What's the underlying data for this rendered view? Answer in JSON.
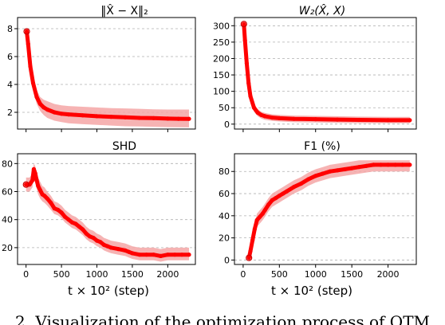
{
  "figure": {
    "xlabel": "t × 10² (step)",
    "caption_fragment": "2. Visualization of the optimization process of OTM"
  },
  "chart_data": [
    {
      "type": "line",
      "title": "‖X̂ − X‖₂",
      "xlabel": "",
      "ylabel": "",
      "xlim": [
        -120,
        2390
      ],
      "ylim": [
        0.8,
        8.8
      ],
      "xticks": [
        0,
        500,
        1000,
        1500,
        2000
      ],
      "xtick_labels_shown": false,
      "yticks": [
        2,
        4,
        6,
        8
      ],
      "grid": "horizontal dashed",
      "series": [
        {
          "x": [
            10,
            30,
            60,
            100,
            150,
            200,
            250,
            300,
            400,
            500,
            600,
            800,
            1000,
            1200,
            1400,
            1600,
            1800,
            2000,
            2150,
            2300
          ],
          "y": [
            7.8,
            6.9,
            5.3,
            4.1,
            3.1,
            2.6,
            2.35,
            2.2,
            2.0,
            1.9,
            1.85,
            1.78,
            1.72,
            1.68,
            1.64,
            1.6,
            1.58,
            1.55,
            1.54,
            1.53
          ],
          "lo": [
            7.8,
            6.6,
            4.9,
            3.6,
            2.6,
            2.1,
            1.8,
            1.6,
            1.4,
            1.3,
            1.22,
            1.15,
            1.1,
            1.05,
            1.0,
            0.98,
            0.96,
            0.94,
            0.93,
            0.92
          ],
          "hi": [
            7.8,
            7.2,
            5.7,
            4.6,
            3.6,
            3.1,
            2.9,
            2.8,
            2.6,
            2.5,
            2.45,
            2.4,
            2.35,
            2.3,
            2.28,
            2.25,
            2.22,
            2.2,
            2.2,
            2.2
          ]
        }
      ]
    },
    {
      "type": "line",
      "title": "W₂(X̂, X)",
      "xlabel": "",
      "ylabel": "",
      "xlim": [
        -120,
        2390
      ],
      "ylim": [
        -15,
        325
      ],
      "xticks": [
        0,
        500,
        1000,
        1500,
        2000
      ],
      "xtick_labels_shown": false,
      "yticks": [
        0,
        50,
        100,
        150,
        200,
        250,
        300
      ],
      "grid": "horizontal dashed",
      "series": [
        {
          "x": [
            10,
            25,
            50,
            75,
            100,
            150,
            200,
            250,
            300,
            400,
            500,
            700,
            1000,
            1300,
            1600,
            2000,
            2300
          ],
          "y": [
            305,
            255,
            185,
            125,
            85,
            50,
            35,
            28,
            24,
            20,
            18,
            16,
            15,
            14,
            13,
            12,
            12
          ],
          "lo": [
            305,
            245,
            170,
            110,
            72,
            38,
            24,
            17,
            13,
            10,
            8,
            6,
            5,
            4,
            3,
            3,
            3
          ],
          "hi": [
            305,
            265,
            200,
            140,
            98,
            62,
            46,
            38,
            34,
            30,
            28,
            26,
            25,
            24,
            23,
            22,
            22
          ]
        }
      ]
    },
    {
      "type": "line",
      "title": "SHD",
      "xlabel": "",
      "ylabel": "",
      "xlim": [
        -120,
        2390
      ],
      "ylim": [
        8,
        87
      ],
      "xticks": [
        0,
        500,
        1000,
        1500,
        2000
      ],
      "xtick_labels_shown": true,
      "yticks": [
        20,
        40,
        60,
        80
      ],
      "grid": "horizontal dashed",
      "series": [
        {
          "x": [
            0,
            50,
            90,
            110,
            130,
            150,
            170,
            200,
            230,
            260,
            300,
            350,
            400,
            450,
            500,
            550,
            600,
            650,
            700,
            750,
            800,
            850,
            900,
            950,
            1000,
            1050,
            1100,
            1150,
            1200,
            1300,
            1400,
            1450,
            1500,
            1600,
            1700,
            1800,
            1900,
            2000,
            2100,
            2200,
            2300
          ],
          "y": [
            65,
            65,
            68,
            76,
            73,
            68,
            64,
            61,
            58,
            57,
            55,
            52,
            48,
            47,
            45,
            42,
            40,
            38,
            37,
            35,
            33,
            30,
            28,
            27,
            25,
            24,
            22,
            21,
            20,
            19,
            18,
            17,
            16,
            15,
            15,
            15,
            14,
            15,
            15,
            15,
            15
          ],
          "lo": [
            60,
            60,
            63,
            70,
            67,
            62,
            58,
            55,
            53,
            52,
            50,
            47,
            44,
            43,
            41,
            38,
            36,
            34,
            33,
            31,
            29,
            26,
            24,
            23,
            21,
            20,
            18,
            17,
            16,
            15,
            14,
            13,
            12,
            11,
            11,
            11,
            10,
            11,
            11,
            11,
            11
          ],
          "hi": [
            70,
            70,
            73,
            80,
            78,
            74,
            70,
            67,
            64,
            63,
            60,
            57,
            53,
            52,
            50,
            47,
            45,
            43,
            42,
            40,
            38,
            35,
            33,
            32,
            30,
            29,
            27,
            26,
            25,
            24,
            23,
            22,
            21,
            20,
            20,
            20,
            19,
            20,
            20,
            20,
            20
          ]
        }
      ]
    },
    {
      "type": "line",
      "title": "F1 (%)",
      "xlabel": "",
      "ylabel": "",
      "xlim": [
        -120,
        2390
      ],
      "ylim": [
        -4,
        96
      ],
      "xticks": [
        0,
        500,
        1000,
        1500,
        2000
      ],
      "xtick_labels_shown": true,
      "yticks": [
        0,
        20,
        40,
        60,
        80
      ],
      "grid": "horizontal dashed",
      "series": [
        {
          "x": [
            80,
            100,
            130,
            160,
            190,
            230,
            270,
            300,
            350,
            400,
            450,
            500,
            550,
            600,
            700,
            800,
            900,
            1000,
            1100,
            1200,
            1300,
            1400,
            1500,
            1600,
            1700,
            1800,
            1900,
            2000,
            2100,
            2200,
            2300
          ],
          "y": [
            2,
            8,
            18,
            28,
            36,
            39,
            42,
            45,
            50,
            54,
            56,
            58,
            60,
            62,
            66,
            69,
            73,
            76,
            78,
            80,
            81,
            82,
            83,
            84,
            85,
            86,
            86,
            86,
            86,
            86,
            86
          ],
          "lo": [
            1,
            4,
            12,
            22,
            30,
            33,
            36,
            39,
            44,
            48,
            50,
            52,
            54,
            56,
            60,
            63,
            67,
            70,
            72,
            74,
            75,
            76,
            77,
            78,
            79,
            80,
            80,
            80,
            80,
            80,
            80
          ],
          "hi": [
            4,
            12,
            24,
            34,
            42,
            45,
            48,
            51,
            56,
            60,
            62,
            64,
            66,
            68,
            72,
            75,
            79,
            82,
            84,
            86,
            87,
            88,
            89,
            90,
            90,
            90,
            90,
            90,
            90,
            90,
            90
          ]
        }
      ]
    }
  ],
  "colors": {
    "line": "#ff0000",
    "band": "#f4a6a6",
    "grid": "#b0b0b0",
    "axis": "#000000"
  }
}
